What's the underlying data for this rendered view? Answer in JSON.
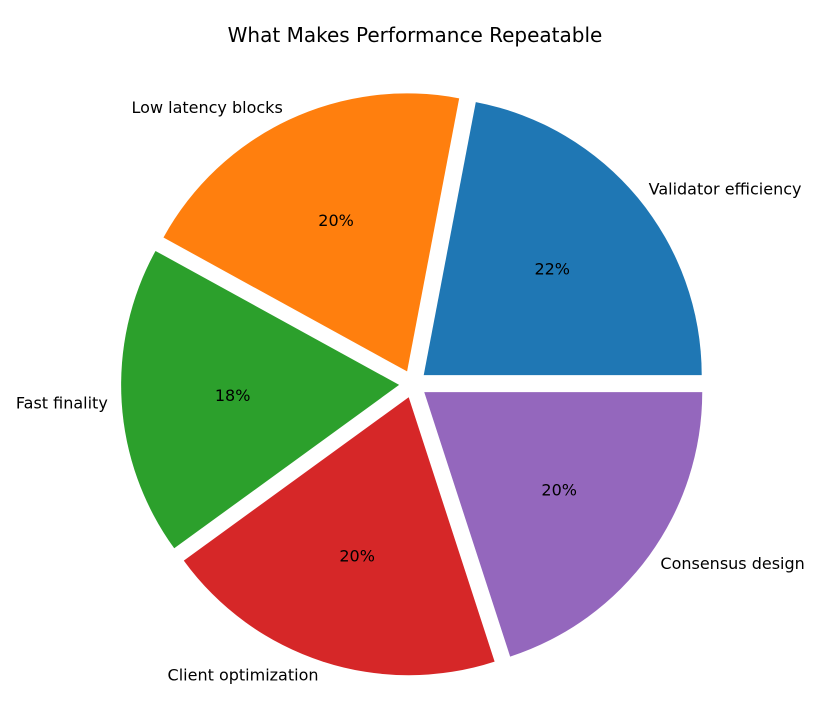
{
  "chart_data": {
    "type": "pie",
    "title": "What Makes Performance Repeatable",
    "categories": [
      "Validator efficiency",
      "Low latency blocks",
      "Fast finality",
      "Client optimization",
      "Consensus design"
    ],
    "values": [
      22,
      20,
      18,
      20,
      20
    ],
    "value_labels": [
      "22%",
      "20%",
      "18%",
      "20%",
      "20%"
    ],
    "colors": [
      "#1f77b4",
      "#ff7f0e",
      "#2ca02c",
      "#d62728",
      "#9467bd"
    ],
    "start_angle_deg": 0,
    "direction": "counterclockwise",
    "exploded": true,
    "legend": "none"
  }
}
